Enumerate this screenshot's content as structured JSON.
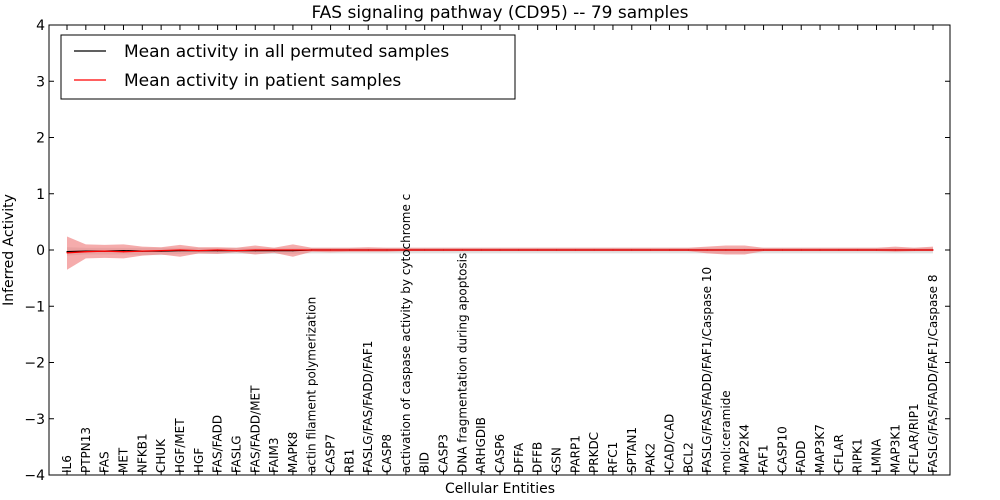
{
  "chart_data": {
    "type": "line",
    "title": "FAS signaling pathway (CD95) -- 79 samples",
    "xlabel": "Cellular Entities",
    "ylabel": "Inferred Activity",
    "ylim": [
      -4,
      4
    ],
    "yticks": [
      4,
      3,
      2,
      1,
      0,
      -1,
      -2,
      -3,
      -4
    ],
    "ytick_labels": [
      "4",
      "3",
      "2",
      "1",
      "0",
      "−1",
      "−2",
      "−3",
      "−4"
    ],
    "legend_position": "top-left",
    "categories": [
      "IL6",
      "PTPN13",
      "FAS",
      "MET",
      "NFKB1",
      "CHUK",
      "HGF/MET",
      "HGF",
      "FAS/FADD",
      "FASLG",
      "FAS/FADD/MET",
      "FAIM3",
      "MAPK8",
      "actin filament polymerization",
      "CASP7",
      "RB1",
      "FASLG/FAS/FADD/FAF1",
      "CASP8",
      "activation of caspase activity by cytochrome c",
      "BID",
      "CASP3",
      "DNA fragmentation during apoptosis",
      "ARHGDIB",
      "CASP6",
      "DFFA",
      "DFFB",
      "GSN",
      "PARP1",
      "PRKDC",
      "RFC1",
      "SPTAN1",
      "PAK2",
      "ICAD/CAD",
      "BCL2",
      "FASLG/FAS/FADD/FAF1/Caspase 10",
      "mol:ceramide",
      "MAP2K4",
      "FAF1",
      "CASP10",
      "FADD",
      "MAP3K7",
      "CFLAR",
      "RIPK1",
      "LMNA",
      "MAP3K1",
      "CFLAR/RIP1",
      "FASLG/FAS/FADD/FAF1/Caspase 8"
    ],
    "series": [
      {
        "name": "Mean activity in all permuted samples",
        "color": "#000000",
        "values": [
          -0.03,
          -0.02,
          -0.02,
          -0.01,
          -0.02,
          -0.02,
          -0.01,
          -0.01,
          -0.01,
          -0.01,
          -0.01,
          -0.01,
          -0.01,
          0.0,
          0.0,
          0.0,
          0.0,
          0.0,
          0.0,
          0.0,
          0.0,
          0.0,
          0.0,
          0.0,
          0.0,
          0.0,
          0.0,
          0.0,
          0.0,
          0.0,
          0.0,
          0.0,
          0.0,
          0.0,
          0.0,
          0.0,
          0.0,
          0.0,
          0.0,
          0.0,
          0.0,
          0.0,
          0.0,
          0.0,
          0.0,
          0.0,
          0.0
        ],
        "band_low": [
          -0.1,
          -0.08,
          -0.08,
          -0.08,
          -0.09,
          -0.09,
          -0.07,
          -0.07,
          -0.07,
          -0.07,
          -0.07,
          -0.07,
          -0.07,
          -0.06,
          -0.06,
          -0.06,
          -0.06,
          -0.06,
          -0.06,
          -0.06,
          -0.06,
          -0.06,
          -0.06,
          -0.06,
          -0.06,
          -0.06,
          -0.06,
          -0.06,
          -0.06,
          -0.06,
          -0.06,
          -0.06,
          -0.06,
          -0.06,
          -0.06,
          -0.06,
          -0.06,
          -0.06,
          -0.06,
          -0.06,
          -0.06,
          -0.06,
          -0.06,
          -0.06,
          -0.06,
          -0.06,
          -0.06
        ],
        "band_high": [
          0.05,
          0.04,
          0.04,
          0.04,
          0.04,
          0.04,
          0.04,
          0.04,
          0.04,
          0.04,
          0.04,
          0.04,
          0.04,
          0.04,
          0.04,
          0.04,
          0.04,
          0.04,
          0.04,
          0.04,
          0.04,
          0.04,
          0.04,
          0.04,
          0.04,
          0.04,
          0.04,
          0.04,
          0.04,
          0.04,
          0.04,
          0.04,
          0.04,
          0.04,
          0.04,
          0.04,
          0.04,
          0.04,
          0.04,
          0.04,
          0.04,
          0.04,
          0.04,
          0.04,
          0.04,
          0.04,
          0.04
        ],
        "band_color": "#cccccc"
      },
      {
        "name": "Mean activity in patient samples",
        "color": "#ff0000",
        "values": [
          -0.05,
          -0.03,
          -0.02,
          -0.03,
          -0.02,
          -0.01,
          0.0,
          -0.01,
          0.0,
          -0.01,
          0.0,
          0.0,
          0.0,
          0.0,
          0.0,
          0.0,
          0.0,
          0.0,
          0.0,
          0.0,
          0.0,
          0.0,
          0.0,
          0.0,
          0.0,
          0.0,
          0.0,
          0.0,
          0.0,
          0.0,
          0.0,
          0.0,
          0.0,
          0.0,
          0.0,
          0.0,
          0.0,
          0.0,
          0.0,
          0.0,
          0.0,
          0.0,
          0.0,
          0.0,
          0.0,
          0.0,
          0.0
        ],
        "band_low": [
          -0.35,
          -0.15,
          -0.14,
          -0.15,
          -0.1,
          -0.08,
          -0.12,
          -0.06,
          -0.07,
          -0.04,
          -0.08,
          -0.05,
          -0.12,
          -0.03,
          -0.04,
          -0.03,
          -0.03,
          -0.03,
          -0.02,
          -0.02,
          -0.02,
          -0.02,
          -0.02,
          -0.02,
          -0.02,
          -0.02,
          -0.02,
          -0.02,
          -0.02,
          -0.02,
          -0.02,
          -0.02,
          -0.02,
          -0.02,
          -0.06,
          -0.08,
          -0.08,
          -0.02,
          -0.02,
          -0.02,
          -0.02,
          -0.02,
          -0.02,
          -0.02,
          -0.03,
          -0.02,
          -0.02
        ],
        "band_high": [
          0.24,
          0.1,
          0.09,
          0.1,
          0.06,
          0.05,
          0.09,
          0.05,
          0.05,
          0.04,
          0.08,
          0.04,
          0.1,
          0.04,
          0.04,
          0.04,
          0.05,
          0.04,
          0.04,
          0.04,
          0.04,
          0.04,
          0.04,
          0.04,
          0.04,
          0.04,
          0.04,
          0.04,
          0.04,
          0.04,
          0.04,
          0.04,
          0.04,
          0.04,
          0.06,
          0.08,
          0.08,
          0.04,
          0.04,
          0.04,
          0.04,
          0.04,
          0.04,
          0.04,
          0.06,
          0.04,
          0.06
        ],
        "band_color": "#f08080"
      }
    ]
  }
}
